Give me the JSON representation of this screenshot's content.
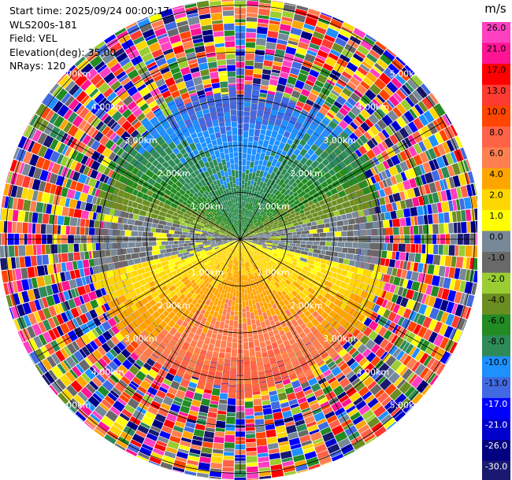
{
  "header": {
    "start_time": "Start time: 2025/09/24 00:00:17",
    "instrument": "WLS200s-181",
    "field": "Field: VEL",
    "elevation": "Elevation(deg): 35.00",
    "nrays": "NRays: 120"
  },
  "chart_data": {
    "type": "heatmap",
    "projection": "polar-ppi",
    "grid": true,
    "range_rings": [
      "1.00km",
      "2.00km",
      "3.00km",
      "4.00km",
      "5.00km"
    ],
    "colorbar": {
      "title": "m/s",
      "ticks": [
        "26.0",
        "21.0",
        "17.0",
        "13.0",
        "10.0",
        "8.0",
        "6.0",
        "4.0",
        "2.0",
        "1.0",
        "0.0",
        "-1.0",
        "-2.0",
        "-4.0",
        "-6.0",
        "-8.0",
        "-10.0",
        "-13.0",
        "-17.0",
        "-21.0",
        "-26.0",
        "-30.0"
      ],
      "bins": [
        {
          "from": 26.0,
          "color": "#ff40c0"
        },
        {
          "from": 21.0,
          "color": "#ff1493"
        },
        {
          "from": 17.0,
          "color": "#ff0000"
        },
        {
          "from": 13.0,
          "color": "#ff3a30"
        },
        {
          "from": 10.0,
          "color": "#ff4500"
        },
        {
          "from": 8.0,
          "color": "#ff6347"
        },
        {
          "from": 6.0,
          "color": "#ff7f50"
        },
        {
          "from": 4.0,
          "color": "#ffa500"
        },
        {
          "from": 2.0,
          "color": "#ffd700"
        },
        {
          "from": 1.0,
          "color": "#ffff00"
        },
        {
          "from": 0.0,
          "color": "#778899"
        },
        {
          "from": -1.0,
          "color": "#696969"
        },
        {
          "from": -2.0,
          "color": "#9acd32"
        },
        {
          "from": -4.0,
          "color": "#6b8e23"
        },
        {
          "from": -6.0,
          "color": "#228b22"
        },
        {
          "from": -8.0,
          "color": "#2e8b57"
        },
        {
          "from": -10.0,
          "color": "#1e90ff"
        },
        {
          "from": -13.0,
          "color": "#4169e1"
        },
        {
          "from": -17.0,
          "color": "#0000ff"
        },
        {
          "from": -21.0,
          "color": "#0000cd"
        },
        {
          "from": -26.0,
          "color": "#000080"
        },
        {
          "from": -30.0,
          "color": "#191970"
        }
      ]
    },
    "pattern_summary": {
      "north_sector": "approaching, about -6 to -13 m/s (blue/green), to ~2.8 km",
      "south_sector": "receding, about +2 to +8 m/s (yellow/orange), to ~3 km",
      "east_west_axis": "near zero (gray)",
      "beyond_signal_range": "noise (random colours) out to ~6 km"
    }
  }
}
